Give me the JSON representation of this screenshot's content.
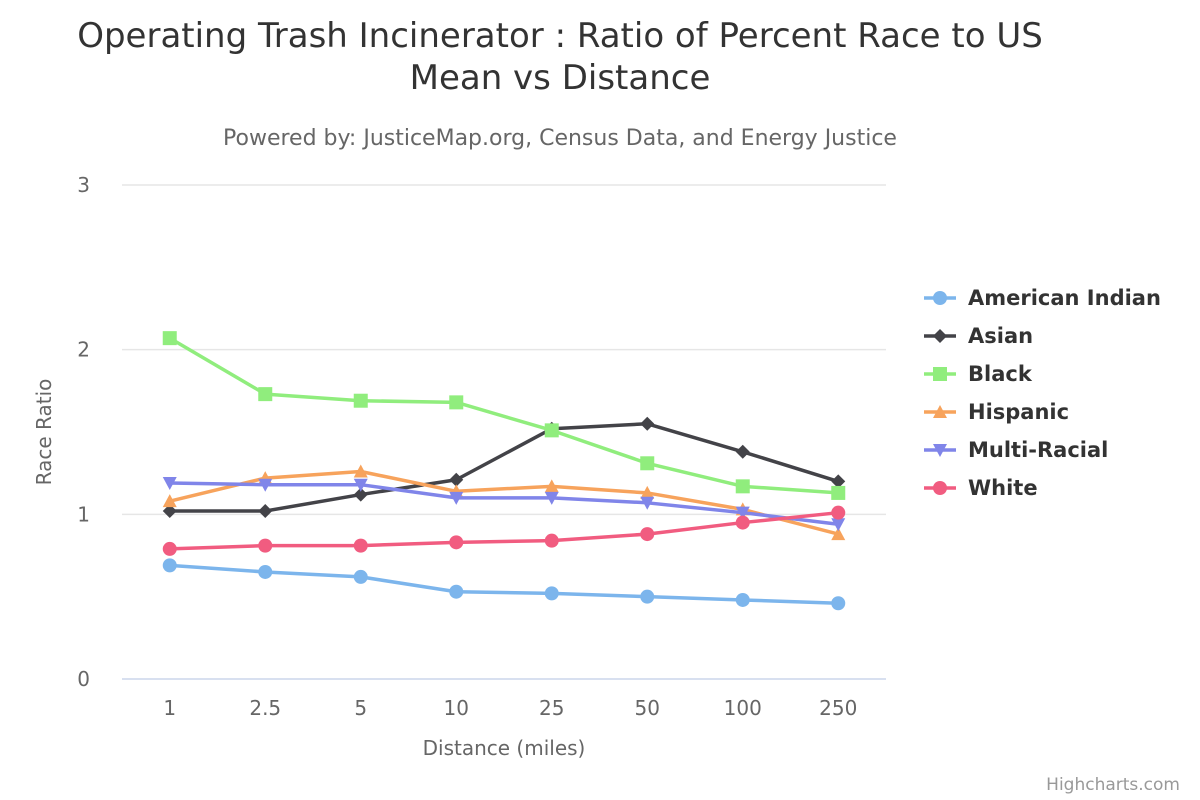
{
  "chart_data": {
    "type": "line",
    "title_lines": [
      "Operating Trash Incinerator : Ratio of Percent Race to US",
      "Mean vs Distance"
    ],
    "subtitle": "Powered by: JusticeMap.org, Census Data, and Energy Justice",
    "xlabel": "Distance (miles)",
    "ylabel": "Race Ratio",
    "categories": [
      "1",
      "2.5",
      "5",
      "10",
      "25",
      "50",
      "100",
      "250"
    ],
    "ylim": [
      0,
      3
    ],
    "yticks": [
      "0",
      "1",
      "2",
      "3"
    ],
    "grid": true,
    "legend_position": "right",
    "series": [
      {
        "name": "American Indian",
        "color": "#7cb5ec",
        "marker": "circle",
        "values": [
          0.69,
          0.65,
          0.62,
          0.53,
          0.52,
          0.5,
          0.48,
          0.46
        ]
      },
      {
        "name": "Asian",
        "color": "#434348",
        "marker": "diamond",
        "values": [
          1.02,
          1.02,
          1.12,
          1.21,
          1.52,
          1.55,
          1.38,
          1.2
        ]
      },
      {
        "name": "Black",
        "color": "#90ed7d",
        "marker": "square",
        "values": [
          2.07,
          1.73,
          1.69,
          1.68,
          1.51,
          1.31,
          1.17,
          1.13
        ]
      },
      {
        "name": "Hispanic",
        "color": "#f7a35c",
        "marker": "triangle",
        "values": [
          1.08,
          1.22,
          1.26,
          1.14,
          1.17,
          1.13,
          1.03,
          0.88
        ]
      },
      {
        "name": "Multi-Racial",
        "color": "#8085e9",
        "marker": "triangle-down",
        "values": [
          1.19,
          1.18,
          1.18,
          1.1,
          1.1,
          1.07,
          1.01,
          0.94
        ]
      },
      {
        "name": "White",
        "color": "#f15c80",
        "marker": "circle",
        "values": [
          0.79,
          0.81,
          0.81,
          0.83,
          0.84,
          0.88,
          0.95,
          1.01
        ]
      }
    ]
  },
  "credits": "Highcharts.com"
}
